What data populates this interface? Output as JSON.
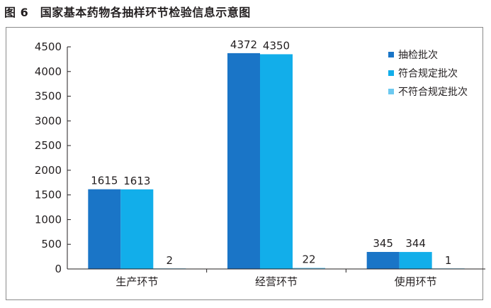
{
  "figure_title": "图 6　国家基本药物各抽样环节检验信息示意图",
  "colors": {
    "sampled": "#1a75c7",
    "qualified": "#12aeea",
    "unqualified": "#6cc9f0",
    "axis": "#231f20",
    "frame": "#8a8a8a"
  },
  "chart_data": {
    "type": "bar",
    "title": "",
    "xlabel": "",
    "ylabel": "",
    "ylim": [
      0,
      4500
    ],
    "yticks": [
      0,
      500,
      1000,
      1500,
      2000,
      2500,
      3000,
      3500,
      4000,
      4500
    ],
    "categories": [
      "生产环节",
      "经营环节",
      "使用环节"
    ],
    "series": [
      {
        "name": "抽检批次",
        "values": [
          1615,
          4372,
          345
        ],
        "color": "#1a75c7"
      },
      {
        "name": "符合规定批次",
        "values": [
          1613,
          4350,
          344
        ],
        "color": "#12aeea"
      },
      {
        "name": "不符合规定批次",
        "values": [
          2,
          22,
          1
        ],
        "color": "#6cc9f0"
      }
    ],
    "legend_position": "top-right",
    "grid": false
  }
}
